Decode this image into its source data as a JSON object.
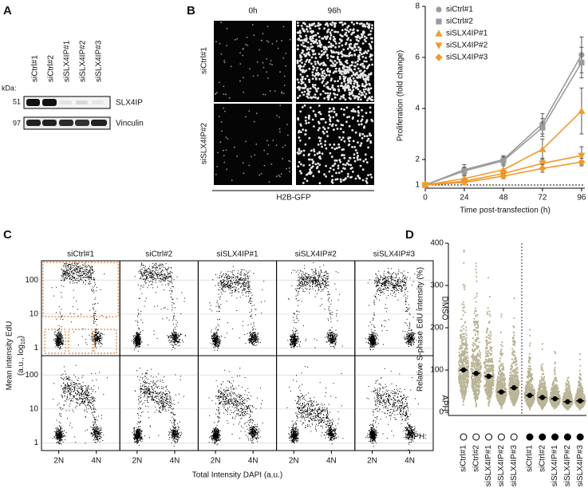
{
  "panel_labels": [
    "A",
    "B",
    "C",
    "D"
  ],
  "panel_a": {
    "lanes": [
      "siCtrl#1",
      "siCtrl#2",
      "siSLX4IP#1",
      "siSLX4IP#2",
      "siSLX4IP#3"
    ],
    "kda_label": "kDa:",
    "markers": [
      "51",
      "97"
    ],
    "bands": [
      "SLX4IP",
      "Vinculin"
    ]
  },
  "panel_b_images": {
    "columns": [
      "0h",
      "96h"
    ],
    "rows": [
      "siCtrl#1",
      "siSLX4IP#2"
    ],
    "caption": "H2B-GFP"
  },
  "chart_data": [
    {
      "type": "line",
      "x": [
        0,
        24,
        48,
        72,
        96
      ],
      "xlim": [
        0,
        98
      ],
      "xticks": [
        0,
        24,
        48,
        72,
        96
      ],
      "ylim": [
        1,
        8
      ],
      "yticks": [
        1,
        2,
        4,
        6,
        8
      ],
      "hline": 1,
      "x_label": "Time post-transfection (h)",
      "y_label": "Proliferation (fold change)",
      "series": [
        {
          "name": "siCtrl#1",
          "color": "#9b9b9b",
          "marker": "circle",
          "values": [
            1,
            1.6,
            2.0,
            3.4,
            6.1
          ],
          "errors": [
            0,
            0.2,
            0.15,
            0.4,
            0.7
          ]
        },
        {
          "name": "siCtrl#2",
          "color": "#9b9b9b",
          "marker": "square",
          "values": [
            1,
            1.55,
            1.95,
            3.25,
            5.8
          ],
          "errors": [
            0,
            0.15,
            0.15,
            0.35,
            0.6
          ]
        },
        {
          "name": "siSLX4IP#1",
          "color": "#f39a2a",
          "marker": "triangle-up",
          "values": [
            1,
            1.25,
            1.6,
            2.4,
            3.9
          ],
          "errors": [
            0,
            0.1,
            0.15,
            0.4,
            0.9
          ]
        },
        {
          "name": "siSLX4IP#2",
          "color": "#f39a2a",
          "marker": "triangle-down",
          "values": [
            1,
            1.15,
            1.45,
            1.85,
            2.15
          ],
          "errors": [
            0,
            0.1,
            0.1,
            0.2,
            0.35
          ]
        },
        {
          "name": "siSLX4IP#3",
          "color": "#f39a2a",
          "marker": "diamond",
          "values": [
            1,
            1.1,
            1.35,
            1.65,
            1.9
          ],
          "errors": [
            0,
            0.08,
            0.1,
            0.15,
            0.15
          ]
        }
      ]
    },
    {
      "type": "density-grid",
      "columns": [
        "siCtrl#1",
        "siCtrl#2",
        "siSLX4IP#1",
        "siSLX4IP#2",
        "siSLX4IP#3"
      ],
      "rows": [
        "DMSO",
        "APH"
      ],
      "yscale": "log",
      "ylim": [
        0.6,
        370
      ],
      "yticks": [
        100,
        10,
        1
      ],
      "xlim": [
        1.08,
        5.25
      ],
      "xticks": [
        {
          "value": 2,
          "label": "2N"
        },
        {
          "value": 4,
          "label": "4N"
        }
      ],
      "x_label": "Total Intensity DAPI (a.u.)",
      "y_label": [
        "Mean intensity EdU",
        "(a.u., log",
        "10",
        ")"
      ],
      "grid": true
    },
    {
      "type": "strip",
      "categories": [
        "siCtrl#1",
        "siCtrl#2",
        "siSLX4IP#1",
        "siSLX4IP#2",
        "siSLX4IP#3",
        "siCtrl#1",
        "siCtrl#2",
        "siSLX4IP#1",
        "siSLX4IP#2",
        "siSLX4IP#3"
      ],
      "aph": [
        false,
        false,
        false,
        false,
        false,
        true,
        true,
        true,
        true,
        true
      ],
      "aph_label": "APH:",
      "values": [
        100,
        92,
        85,
        48,
        58,
        40,
        35,
        32,
        25,
        27
      ],
      "ylim": [
        0,
        400
      ],
      "yticks": [
        0,
        100,
        200,
        300,
        400
      ],
      "y_label": "Relative S-phase EdU intensity (%)",
      "color": "#b9b496",
      "mean_color": "#000000"
    }
  ]
}
